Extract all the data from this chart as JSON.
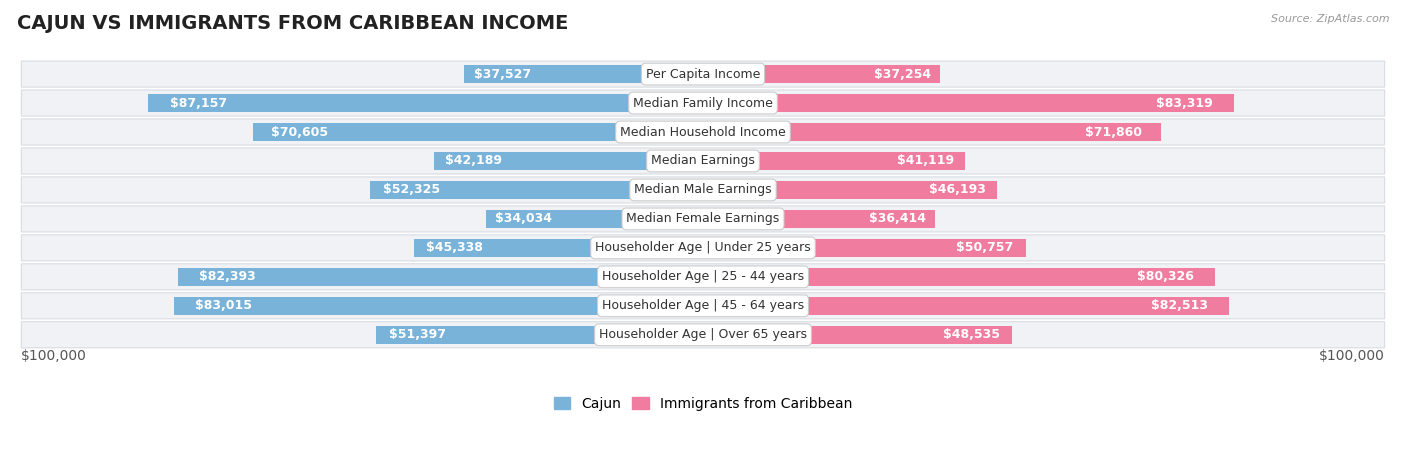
{
  "title": "CAJUN VS IMMIGRANTS FROM CARIBBEAN INCOME",
  "source": "Source: ZipAtlas.com",
  "categories": [
    "Per Capita Income",
    "Median Family Income",
    "Median Household Income",
    "Median Earnings",
    "Median Male Earnings",
    "Median Female Earnings",
    "Householder Age | Under 25 years",
    "Householder Age | 25 - 44 years",
    "Householder Age | 45 - 64 years",
    "Householder Age | Over 65 years"
  ],
  "cajun_values": [
    37527,
    87157,
    70605,
    42189,
    52325,
    34034,
    45338,
    82393,
    83015,
    51397
  ],
  "caribbean_values": [
    37254,
    83319,
    71860,
    41119,
    46193,
    36414,
    50757,
    80326,
    82513,
    48535
  ],
  "cajun_labels": [
    "$37,527",
    "$87,157",
    "$70,605",
    "$42,189",
    "$52,325",
    "$34,034",
    "$45,338",
    "$82,393",
    "$83,015",
    "$51,397"
  ],
  "caribbean_labels": [
    "$37,254",
    "$83,319",
    "$71,860",
    "$41,119",
    "$46,193",
    "$36,414",
    "$50,757",
    "$80,326",
    "$82,513",
    "$48,535"
  ],
  "max_value": 100000,
  "cajun_color": "#7ab3d9",
  "caribbean_color": "#f07ca0",
  "caribbean_color_bright": "#e8547a",
  "label_cajun": "Cajun",
  "label_caribbean": "Immigrants from Caribbean",
  "x_label_left": "$100,000",
  "x_label_right": "$100,000",
  "row_bg_color": "#f0f2f5",
  "row_border_color": "#d8dce2",
  "title_fontsize": 14,
  "axis_fontsize": 10,
  "bar_label_fontsize": 9,
  "category_fontsize": 9,
  "inside_label_threshold": 28000
}
